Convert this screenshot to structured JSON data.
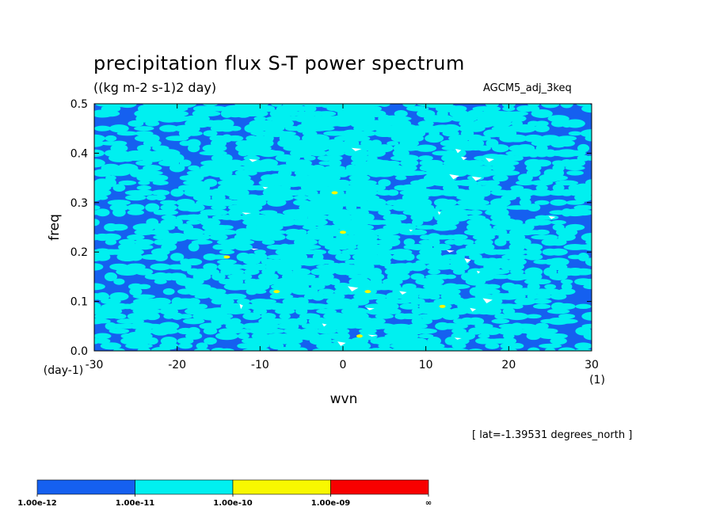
{
  "chart_data": {
    "type": "heatmap",
    "title": "precipitation flux S-T power spectrum",
    "subtitle": "((kg m-2 s-1)2 day)",
    "run_label": "AGCM5_adj_3keq",
    "xlabel": "wvn",
    "ylabel": "freq",
    "x_unit": "(1)",
    "y_unit": "(day-1)",
    "xlim": [
      -30,
      30
    ],
    "ylim": [
      0.0,
      0.5
    ],
    "x_ticks": [
      "-30",
      "-20",
      "-10",
      "0",
      "10",
      "20",
      "30"
    ],
    "y_ticks": [
      "0.0",
      "0.1",
      "0.2",
      "0.3",
      "0.4",
      "0.5"
    ],
    "x_tick_values": [
      -30,
      -20,
      -10,
      0,
      10,
      20,
      30
    ],
    "y_tick_values": [
      0.0,
      0.1,
      0.2,
      0.3,
      0.4,
      0.5
    ],
    "note": "[ lat=-1.39531 degrees_north ]",
    "levels": [
      "1.00e-12",
      "1.00e-11",
      "1.00e-10",
      "1.00e-09",
      "∞"
    ],
    "level_colors": [
      "#1560f0",
      "#00f0f0",
      "#f8f800",
      "#f80000"
    ],
    "background_color": "#ffffff",
    "field_summary": "mostly between 1.00e-12 and 1.00e-10, with isolated points of 1.00e-10 to 1.00e-09 near wvn 0–12, freq 0.03–0.25",
    "hotspots": [
      {
        "wvn": 0,
        "freq": 0.24
      },
      {
        "wvn": 3,
        "freq": 0.12
      },
      {
        "wvn": -8,
        "freq": 0.12
      },
      {
        "wvn": 12,
        "freq": 0.09
      },
      {
        "wvn": -1,
        "freq": 0.32
      },
      {
        "wvn": 2,
        "freq": 0.03
      },
      {
        "wvn": -14,
        "freq": 0.19
      }
    ]
  }
}
